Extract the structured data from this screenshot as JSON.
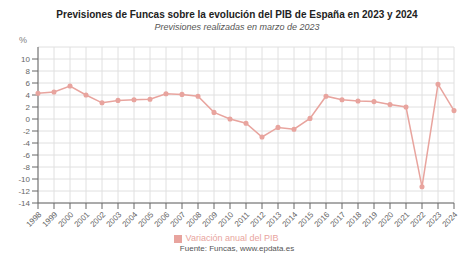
{
  "chart_data": {
    "type": "line",
    "title": "Previsiones de Funcas sobre la evolución del PIB de España en 2023 y 2024",
    "subtitle": "Previsiones realizadas en marzo de 2023",
    "y_label": "%",
    "annotations": [
      "Fuente: Funcas, www.epdata.es"
    ],
    "categories": [
      "1998",
      "1999",
      "2000",
      "2001",
      "2002",
      "2003",
      "2004",
      "2005",
      "2006",
      "2007",
      "2008",
      "2009",
      "2010",
      "2011",
      "2012",
      "2013",
      "2014",
      "2015",
      "2016",
      "2017",
      "2018",
      "2019",
      "2020",
      "2021",
      "2022",
      "2023",
      "2024"
    ],
    "series": [
      {
        "name": "Variación anual del PIB",
        "color": "#e8a49e",
        "marker": "circle",
        "values": [
          4.3,
          4.5,
          5.5,
          4.0,
          2.7,
          3.1,
          3.2,
          3.3,
          4.2,
          4.1,
          3.8,
          1.1,
          0.0,
          -0.7,
          -3.0,
          -1.4,
          -1.7,
          0.1,
          3.8,
          3.2,
          3.0,
          2.9,
          2.4,
          2.0,
          -11.3,
          5.8,
          1.4
        ]
      }
    ],
    "ylim": [
      -14,
      12
    ],
    "yticks": [
      -14,
      -12,
      -10,
      -8,
      -6,
      -4,
      -2,
      0,
      2,
      4,
      6,
      8,
      10
    ],
    "grid": true
  }
}
